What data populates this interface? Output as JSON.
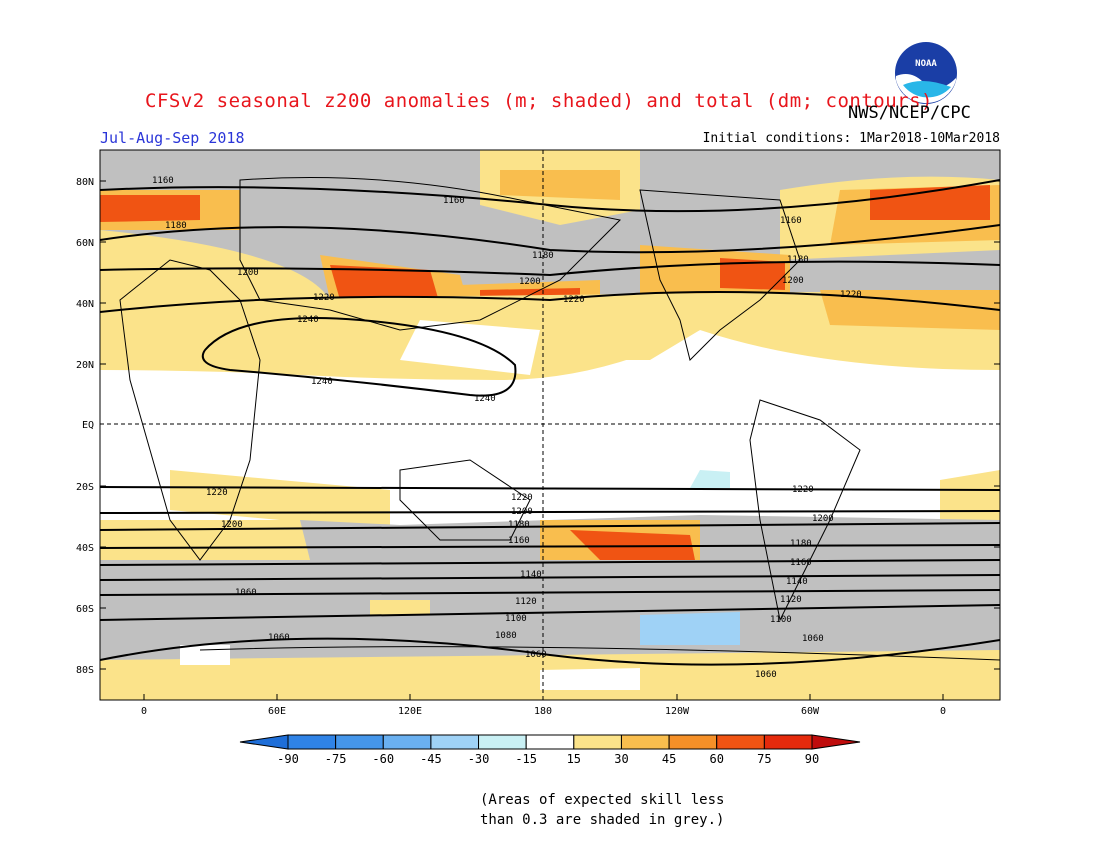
{
  "header": {
    "title": "CFSv2 seasonal z200 anomalies (m; shaded) and total (dm; contours)",
    "agency": "NWS/NCEP/CPC",
    "period": "Jul-Aug-Sep 2018",
    "initial_conditions": "Initial conditions: 1Mar2018-10Mar2018",
    "logo_text": "NOAA"
  },
  "map": {
    "lat_labels": [
      "80N",
      "60N",
      "40N",
      "20N",
      "EQ",
      "20S",
      "40S",
      "60S",
      "80S"
    ],
    "lon_labels": [
      "0",
      "60E",
      "120E",
      "180",
      "120W",
      "60W",
      "0"
    ],
    "contour_labels": [
      "1160",
      "1160",
      "1180",
      "1160",
      "1180",
      "1200",
      "1220",
      "1240",
      "1240",
      "1240",
      "1200",
      "1220",
      "1180",
      "1200",
      "1220",
      "1220",
      "1200",
      "1220",
      "1200",
      "1180",
      "1160",
      "1140",
      "1120",
      "1100",
      "1060",
      "1080",
      "1060",
      "1060",
      "1220",
      "1200",
      "1180",
      "1160",
      "1140",
      "1120",
      "1100",
      "1060",
      "1060"
    ]
  },
  "colorbar": {
    "ticks": [
      "-90",
      "-75",
      "-60",
      "-45",
      "-30",
      "-15",
      "15",
      "30",
      "45",
      "60",
      "75",
      "90"
    ],
    "colors": [
      "#1e6ed8",
      "#2f83e6",
      "#4596ea",
      "#6ab0f0",
      "#9fd2f6",
      "#c9f0f4",
      "#ffffff",
      "#fbe38a",
      "#f9be4e",
      "#f59028",
      "#f05413",
      "#e52a0c",
      "#bf0c0c"
    ]
  },
  "footnote": {
    "line1": "(Areas of expected skill less",
    "line2": "than 0.3 are shaded in grey.)"
  }
}
